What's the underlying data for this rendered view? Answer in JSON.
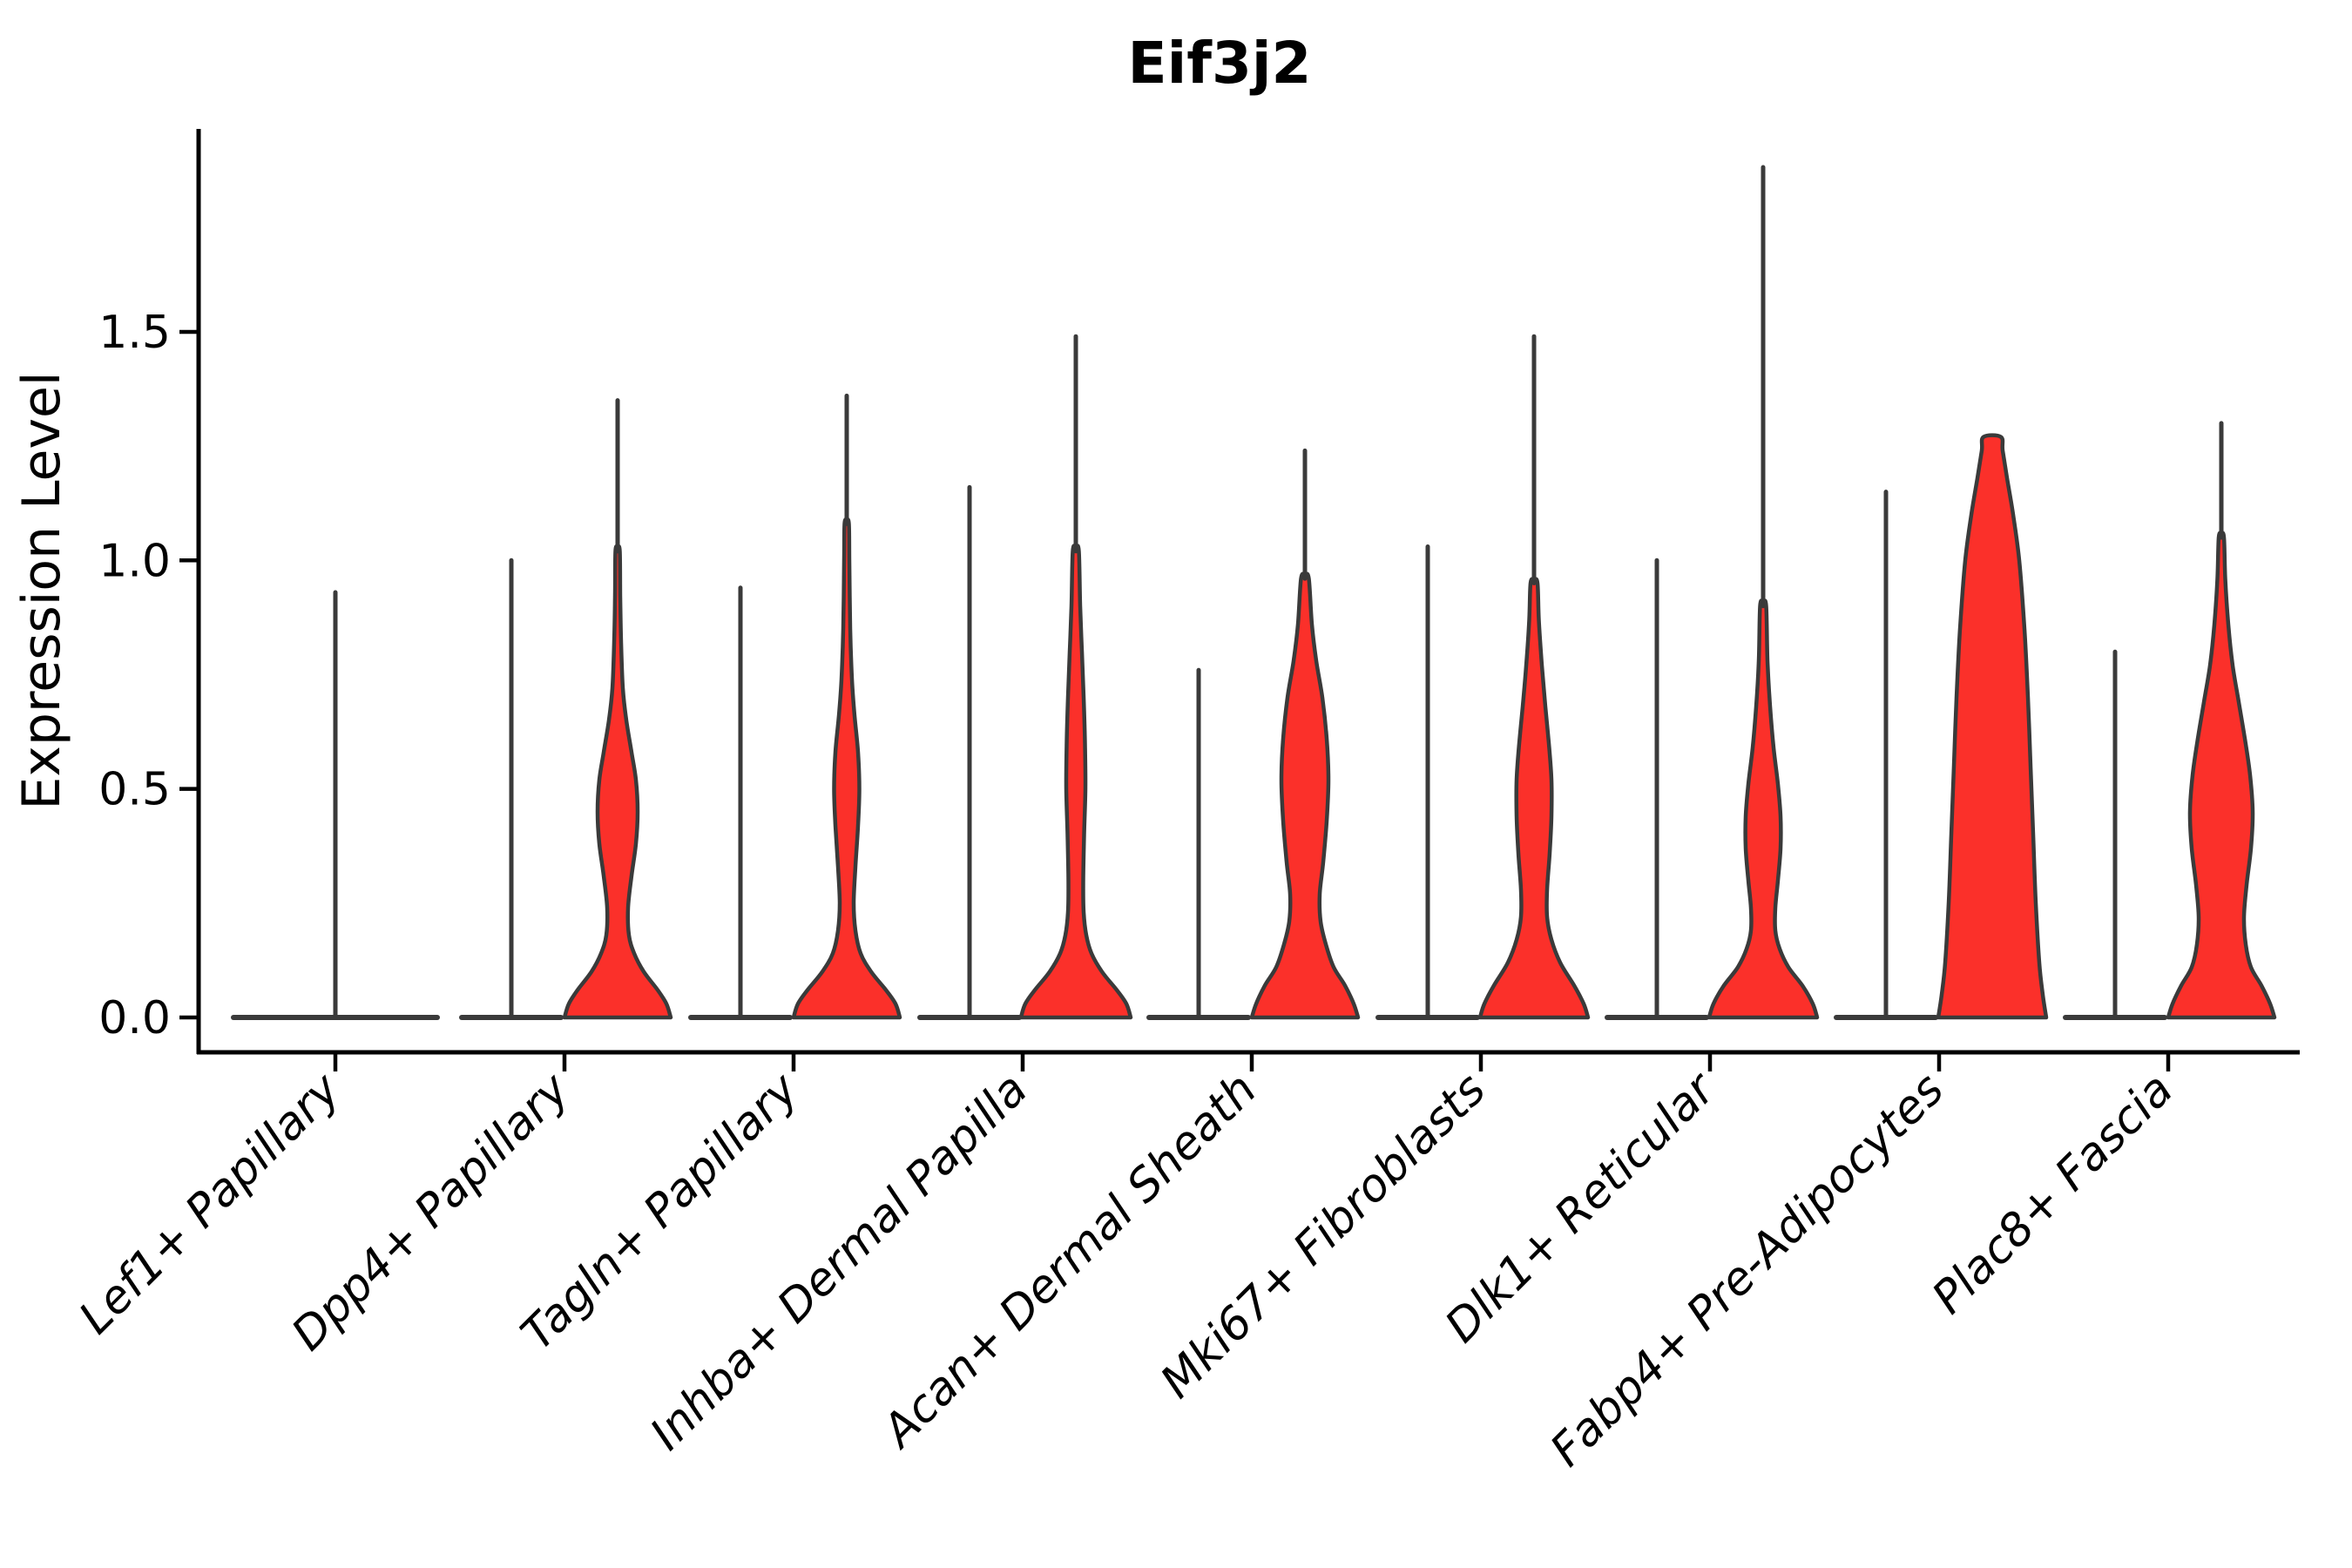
{
  "figure": {
    "title": "Eif3j2",
    "background": "#ffffff"
  },
  "chart_data": {
    "type": "violin",
    "title": "Eif3j2",
    "xlabel": "",
    "ylabel": "Expression Level",
    "ylim": [
      -0.08,
      1.95
    ],
    "grid": false,
    "legend": null,
    "ytick_labels": [
      "0.0",
      "0.5",
      "1.0",
      "1.5"
    ],
    "ytick_values": [
      0,
      0.5,
      1.0,
      1.5
    ],
    "fill_color": "#fb302a",
    "edge_color": "#3a3a3a",
    "axis_color": "#000000",
    "profile_format": "[expression_level, half_width_px]",
    "categories": [
      {
        "label": "Lef1+ Papillary",
        "violins": [
          {
            "kind": "spike",
            "offset": 0,
            "half_width": 120,
            "max": 0.93
          }
        ]
      },
      {
        "label": "Dpp4+ Papillary",
        "violins": [
          {
            "kind": "spike",
            "offset": -61,
            "half_width": 60,
            "max": 1.0
          },
          {
            "kind": "body",
            "offset": 61,
            "stem_top": 1.35,
            "profile": [
              [
                0,
                61
              ],
              [
                0.03,
                56
              ],
              [
                0.06,
                46
              ],
              [
                0.1,
                30
              ],
              [
                0.14,
                19
              ],
              [
                0.18,
                13
              ],
              [
                0.24,
                12
              ],
              [
                0.31,
                16
              ],
              [
                0.38,
                21
              ],
              [
                0.45,
                23
              ],
              [
                0.52,
                21
              ],
              [
                0.58,
                16
              ],
              [
                0.65,
                10
              ],
              [
                0.72,
                6
              ],
              [
                0.82,
                4
              ],
              [
                0.92,
                3
              ],
              [
                1.02,
                2.5
              ]
            ]
          }
        ]
      },
      {
        "label": "Tagln+ Papillary",
        "violins": [
          {
            "kind": "spike",
            "offset": -61,
            "half_width": 60,
            "max": 0.94
          },
          {
            "kind": "body",
            "offset": 61,
            "stem_top": 1.36,
            "profile": [
              [
                0,
                61
              ],
              [
                0.03,
                56
              ],
              [
                0.06,
                45
              ],
              [
                0.1,
                28
              ],
              [
                0.14,
                16
              ],
              [
                0.19,
                10
              ],
              [
                0.25,
                8
              ],
              [
                0.33,
                10
              ],
              [
                0.42,
                13
              ],
              [
                0.5,
                14.5
              ],
              [
                0.58,
                13
              ],
              [
                0.66,
                9
              ],
              [
                0.74,
                6
              ],
              [
                0.85,
                4
              ],
              [
                1.0,
                3
              ],
              [
                1.08,
                2.5
              ]
            ]
          }
        ]
      },
      {
        "label": "Inhba+ Dermal Papilla",
        "violins": [
          {
            "kind": "spike",
            "offset": -61,
            "half_width": 60,
            "max": 1.16
          },
          {
            "kind": "body",
            "offset": 61,
            "stem_top": 1.49,
            "profile": [
              [
                0,
                63
              ],
              [
                0.03,
                58
              ],
              [
                0.06,
                47
              ],
              [
                0.1,
                30
              ],
              [
                0.14,
                18
              ],
              [
                0.18,
                12
              ],
              [
                0.23,
                9
              ],
              [
                0.3,
                8.5
              ],
              [
                0.4,
                9.5
              ],
              [
                0.5,
                11
              ],
              [
                0.6,
                10.5
              ],
              [
                0.7,
                9
              ],
              [
                0.8,
                7
              ],
              [
                0.9,
                5
              ],
              [
                1.02,
                3.5
              ]
            ]
          }
        ]
      },
      {
        "label": "Acan+ Dermal Sheath",
        "violins": [
          {
            "kind": "spike",
            "offset": -61,
            "half_width": 60,
            "max": 0.76
          },
          {
            "kind": "body",
            "offset": 61,
            "stem_top": 1.24,
            "profile": [
              [
                0,
                61
              ],
              [
                0.03,
                56
              ],
              [
                0.07,
                46
              ],
              [
                0.11,
                33
              ],
              [
                0.16,
                24
              ],
              [
                0.21,
                18
              ],
              [
                0.27,
                17
              ],
              [
                0.34,
                21
              ],
              [
                0.43,
                25
              ],
              [
                0.52,
                27
              ],
              [
                0.61,
                25
              ],
              [
                0.7,
                20
              ],
              [
                0.78,
                13
              ],
              [
                0.86,
                8
              ],
              [
                0.96,
                4.5
              ]
            ]
          }
        ]
      },
      {
        "label": "Mki67+ Fibroblasts",
        "violins": [
          {
            "kind": "spike",
            "offset": -61,
            "half_width": 60,
            "max": 1.03
          },
          {
            "kind": "body",
            "offset": 61,
            "stem_top": 1.49,
            "profile": [
              [
                0,
                62
              ],
              [
                0.03,
                57
              ],
              [
                0.07,
                46
              ],
              [
                0.12,
                30
              ],
              [
                0.17,
                20
              ],
              [
                0.22,
                15
              ],
              [
                0.28,
                15
              ],
              [
                0.36,
                18
              ],
              [
                0.44,
                20
              ],
              [
                0.52,
                20
              ],
              [
                0.6,
                17
              ],
              [
                0.68,
                13
              ],
              [
                0.77,
                9
              ],
              [
                0.87,
                5.5
              ],
              [
                0.95,
                4
              ]
            ]
          }
        ]
      },
      {
        "label": "Dlk1+ Reticular",
        "violins": [
          {
            "kind": "spike",
            "offset": -61,
            "half_width": 60,
            "max": 1.0
          },
          {
            "kind": "body",
            "offset": 61,
            "stem_top": 1.86,
            "profile": [
              [
                0,
                62
              ],
              [
                0.03,
                57
              ],
              [
                0.07,
                45
              ],
              [
                0.11,
                29
              ],
              [
                0.15,
                19
              ],
              [
                0.19,
                14
              ],
              [
                0.24,
                14
              ],
              [
                0.3,
                17
              ],
              [
                0.37,
                20
              ],
              [
                0.44,
                20
              ],
              [
                0.51,
                17
              ],
              [
                0.59,
                12
              ],
              [
                0.68,
                8
              ],
              [
                0.78,
                5
              ],
              [
                0.9,
                3.5
              ]
            ]
          }
        ]
      },
      {
        "label": "Fabp4+ Pre-Adipocytes",
        "violins": [
          {
            "kind": "spike",
            "offset": -61,
            "half_width": 60,
            "max": 1.15
          },
          {
            "kind": "body",
            "offset": 61,
            "stem_top": null,
            "profile": [
              [
                0,
                62
              ],
              [
                0.05,
                58
              ],
              [
                0.12,
                54
              ],
              [
                0.25,
                50
              ],
              [
                0.4,
                47
              ],
              [
                0.55,
                44
              ],
              [
                0.7,
                41
              ],
              [
                0.85,
                37
              ],
              [
                1.0,
                31
              ],
              [
                1.1,
                24
              ],
              [
                1.18,
                17
              ],
              [
                1.24,
                12
              ],
              [
                1.27,
                10
              ]
            ]
          }
        ]
      },
      {
        "label": "Plac8+ Fascia",
        "violins": [
          {
            "kind": "spike",
            "offset": -61,
            "half_width": 60,
            "max": 0.8
          },
          {
            "kind": "body",
            "offset": 61,
            "stem_top": 1.3,
            "profile": [
              [
                0,
                61
              ],
              [
                0.03,
                56
              ],
              [
                0.07,
                46
              ],
              [
                0.11,
                34
              ],
              [
                0.16,
                28
              ],
              [
                0.22,
                26
              ],
              [
                0.29,
                29
              ],
              [
                0.37,
                34
              ],
              [
                0.45,
                36
              ],
              [
                0.53,
                33
              ],
              [
                0.61,
                27
              ],
              [
                0.69,
                20
              ],
              [
                0.77,
                13
              ],
              [
                0.86,
                8
              ],
              [
                0.96,
                4.5
              ],
              [
                1.05,
                3
              ]
            ]
          }
        ]
      }
    ]
  }
}
